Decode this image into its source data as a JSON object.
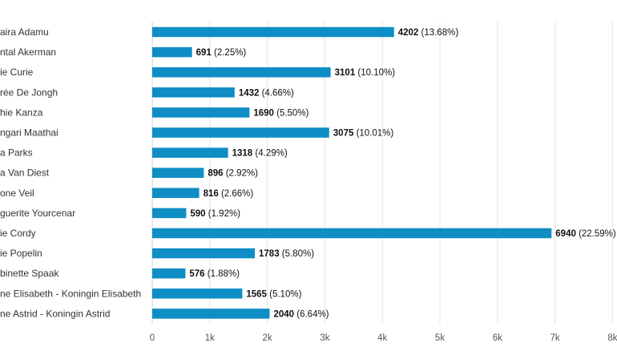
{
  "chart_data": {
    "type": "bar",
    "orientation": "horizontal",
    "title": "",
    "xlabel": "",
    "ylabel": "",
    "xlim": [
      0,
      8000
    ],
    "grid": true,
    "bar_color": "#0f8dc5",
    "x_ticks": [
      {
        "value": 0,
        "label": "0"
      },
      {
        "value": 1000,
        "label": "1k"
      },
      {
        "value": 2000,
        "label": "2k"
      },
      {
        "value": 3000,
        "label": "3k"
      },
      {
        "value": 4000,
        "label": "4k"
      },
      {
        "value": 5000,
        "label": "5k"
      },
      {
        "value": 6000,
        "label": "6k"
      },
      {
        "value": 7000,
        "label": "7k"
      },
      {
        "value": 8000,
        "label": "8k"
      }
    ],
    "bars": [
      {
        "category": "aira Adamu",
        "value": 4202,
        "value_label": "4202",
        "pct_label": "(13.68%)"
      },
      {
        "category": "ntal Akerman",
        "value": 691,
        "value_label": "691",
        "pct_label": "(2.25%)"
      },
      {
        "category": "ie Curie",
        "value": 3101,
        "value_label": "3101",
        "pct_label": "(10.10%)"
      },
      {
        "category": "rée De Jongh",
        "value": 1432,
        "value_label": "1432",
        "pct_label": "(4.66%)"
      },
      {
        "category": "hie Kanza",
        "value": 1690,
        "value_label": "1690",
        "pct_label": "(5.50%)"
      },
      {
        "category": "ngari Maathai",
        "value": 3075,
        "value_label": "3075",
        "pct_label": "(10.01%)"
      },
      {
        "category": "a Parks",
        "value": 1318,
        "value_label": "1318",
        "pct_label": "(4.29%)"
      },
      {
        "category": "a Van Diest",
        "value": 896,
        "value_label": "896",
        "pct_label": "(2.92%)"
      },
      {
        "category": "one Veil",
        "value": 816,
        "value_label": "816",
        "pct_label": "(2.66%)"
      },
      {
        "category": "guerite Yourcenar",
        "value": 590,
        "value_label": "590",
        "pct_label": "(1.92%)"
      },
      {
        "category": "ie Cordy",
        "value": 6940,
        "value_label": "6940",
        "pct_label": "(22.59%)"
      },
      {
        "category": "ie Popelin",
        "value": 1783,
        "value_label": "1783",
        "pct_label": "(5.80%)"
      },
      {
        "category": "binette Spaak",
        "value": 576,
        "value_label": "576",
        "pct_label": "(1.88%)"
      },
      {
        "category": "ne Elisabeth - Koningin Elisabeth",
        "value": 1565,
        "value_label": "1565",
        "pct_label": "(5.10%)"
      },
      {
        "category": "ne Astrid - Koningin Astrid",
        "value": 2040,
        "value_label": "2040",
        "pct_label": "(6.64%)"
      }
    ]
  }
}
